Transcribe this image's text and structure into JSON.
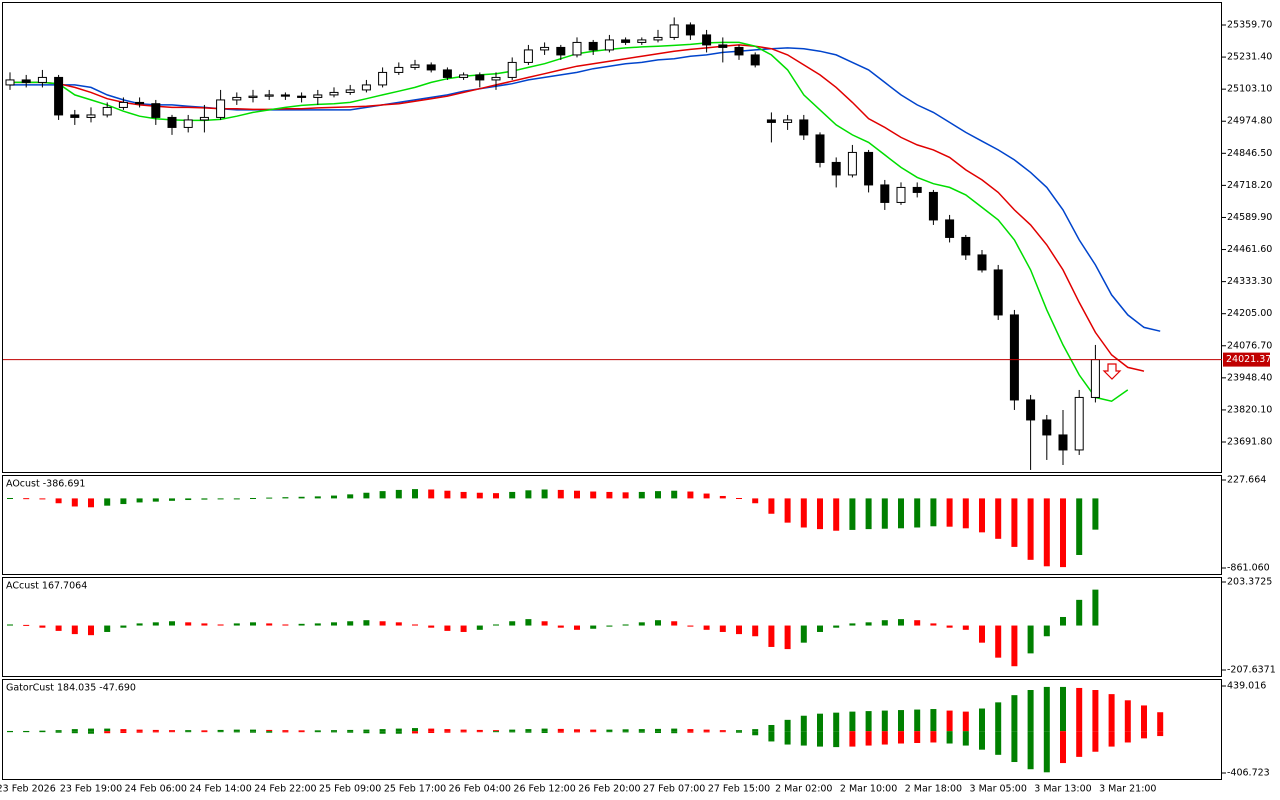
{
  "chart_data": [
    {
      "type": "candlestick",
      "categories": [
        null,
        "23 Feb 2026",
        null,
        null,
        null,
        "23 Feb 19:00",
        null,
        null,
        null,
        "24 Feb 06:00",
        null,
        null,
        null,
        "24 Feb 14:00",
        null,
        null,
        null,
        "24 Feb 22:00",
        null,
        null,
        null,
        "25 Feb 09:00",
        null,
        null,
        null,
        "25 Feb 17:00",
        null,
        null,
        null,
        "26 Feb 04:00",
        null,
        null,
        null,
        "26 Feb 12:00",
        null,
        null,
        null,
        "26 Feb 20:00",
        null,
        null,
        null,
        "27 Feb 07:00",
        null,
        null,
        null,
        "27 Feb 15:00",
        null,
        null,
        null,
        "2 Mar 02:00",
        null,
        null,
        null,
        "2 Mar 10:00",
        null,
        null,
        null,
        "2 Mar 18:00",
        null,
        null,
        null,
        "3 Mar 05:00",
        null,
        null,
        null,
        "3 Mar 13:00",
        null,
        null,
        null,
        "3 Mar 21:00",
        null,
        null
      ],
      "open": [
        25120,
        25140,
        25130,
        25150,
        25000,
        24990,
        25000,
        25030,
        25050,
        25045,
        24990,
        24950,
        24980,
        24990,
        25060,
        25070,
        25075,
        25080,
        25075,
        25070,
        25080,
        25090,
        25100,
        25120,
        25170,
        25190,
        25200,
        25180,
        25150,
        25160,
        25140,
        25150,
        25210,
        25260,
        25270,
        25240,
        25290,
        25260,
        25300,
        25290,
        25300,
        25310,
        25360,
        25320,
        25280,
        25270,
        25240,
        24980,
        24970,
        24980,
        24920,
        24810,
        24760,
        24850,
        24720,
        24650,
        24710,
        24690,
        24580,
        24510,
        24440,
        24380,
        24200,
        23860,
        23780,
        23720,
        23660,
        23870,
        null,
        null,
        null,
        null
      ],
      "high": [
        25170,
        25160,
        25180,
        25160,
        25020,
        25030,
        25050,
        25070,
        25070,
        25060,
        25000,
        25000,
        25040,
        25100,
        25090,
        25100,
        25100,
        25090,
        25090,
        25100,
        25110,
        25120,
        25140,
        25190,
        25210,
        25220,
        25210,
        25190,
        25170,
        25170,
        25170,
        25230,
        25280,
        25290,
        25280,
        25310,
        25300,
        25320,
        25310,
        25310,
        25340,
        25390,
        25370,
        25340,
        25310,
        25280,
        25250,
        25010,
        25000,
        25000,
        24930,
        24830,
        24880,
        24860,
        24740,
        24730,
        24730,
        24700,
        24600,
        24520,
        24460,
        24400,
        24220,
        23880,
        23800,
        23820,
        23900,
        24080,
        null,
        null,
        null,
        null
      ],
      "low": [
        25100,
        25110,
        25110,
        24980,
        24960,
        24970,
        24990,
        25020,
        25030,
        24960,
        24920,
        24930,
        24930,
        24980,
        25040,
        25050,
        25060,
        25060,
        25050,
        25040,
        25070,
        25080,
        25090,
        25110,
        25160,
        25180,
        25170,
        25140,
        25140,
        25110,
        25100,
        25140,
        25200,
        25240,
        25220,
        25230,
        25240,
        25250,
        25280,
        25280,
        25290,
        25300,
        25300,
        25250,
        25210,
        25220,
        25190,
        24890,
        24940,
        24900,
        24790,
        24710,
        24750,
        24690,
        24620,
        24640,
        24670,
        24560,
        24490,
        24420,
        24370,
        24180,
        23820,
        23580,
        23620,
        23600,
        23640,
        23850,
        null,
        null,
        null,
        null
      ],
      "close": [
        25140,
        25130,
        25150,
        25000,
        24990,
        25000,
        25030,
        25050,
        25045,
        24990,
        24950,
        24980,
        24990,
        25060,
        25070,
        25075,
        25080,
        25075,
        25070,
        25080,
        25090,
        25100,
        25120,
        25170,
        25190,
        25200,
        25180,
        25150,
        25160,
        25140,
        25150,
        25210,
        25260,
        25270,
        25240,
        25290,
        25260,
        25300,
        25290,
        25300,
        25310,
        25360,
        25320,
        25280,
        25270,
        25240,
        25200,
        24970,
        24980,
        24920,
        24810,
        24760,
        24850,
        24720,
        24650,
        24710,
        24690,
        24580,
        24510,
        24440,
        24380,
        24200,
        23860,
        23780,
        23720,
        23660,
        23870,
        24021.37,
        null,
        null,
        null,
        null
      ],
      "up_color": "#ffffff",
      "down_color": "#000000",
      "lines": [
        {
          "color": "#0044cc",
          "values": [
            25120,
            25120,
            25120,
            25120,
            25120,
            25110,
            25080,
            25060,
            25045,
            25040,
            25040,
            25035,
            25030,
            25025,
            25020,
            25020,
            25020,
            25020,
            25020,
            25020,
            25020,
            25020,
            25030,
            25040,
            25050,
            25060,
            25070,
            25080,
            25095,
            25105,
            25115,
            25125,
            25140,
            25150,
            25160,
            25170,
            25185,
            25195,
            25205,
            25210,
            25220,
            25225,
            25235,
            25240,
            25250,
            25255,
            25260,
            25265,
            25268,
            25265,
            25255,
            25240,
            25210,
            25180,
            25130,
            25080,
            25040,
            25010,
            24970,
            24930,
            24895,
            24860,
            24820,
            24770,
            24710,
            24620,
            24500,
            24400,
            24280,
            24200,
            24150,
            24135
          ]
        },
        {
          "color": "#e00000",
          "values": [
            25130,
            25130,
            25130,
            25125,
            25110,
            25090,
            25065,
            25050,
            25040,
            25035,
            25030,
            25030,
            25028,
            25025,
            25025,
            25022,
            25022,
            25025,
            25025,
            25028,
            25030,
            25032,
            25035,
            25040,
            25045,
            25055,
            25065,
            25075,
            25090,
            25105,
            25120,
            25135,
            25150,
            25165,
            25180,
            25195,
            25205,
            25215,
            25225,
            25235,
            25245,
            25255,
            25262,
            25268,
            25275,
            25280,
            25275,
            25265,
            25240,
            25200,
            25160,
            25110,
            25050,
            24985,
            24950,
            24910,
            24880,
            24860,
            24830,
            24780,
            24740,
            24690,
            24620,
            24560,
            24480,
            24380,
            24250,
            24130,
            24040,
            23990,
            23975,
            null
          ]
        },
        {
          "color": "#00dd00",
          "values": [
            25130,
            25130,
            25130,
            25125,
            25080,
            25060,
            25040,
            25015,
            24995,
            24985,
            24980,
            24978,
            24978,
            24982,
            24995,
            25010,
            25020,
            25030,
            25038,
            25042,
            25045,
            25050,
            25065,
            25080,
            25095,
            25110,
            25130,
            25145,
            25155,
            25160,
            25165,
            25175,
            25190,
            25205,
            25225,
            25245,
            25255,
            25262,
            25268,
            25272,
            25275,
            25278,
            25282,
            25288,
            25290,
            25290,
            25275,
            25240,
            25180,
            25080,
            25020,
            24960,
            24920,
            24890,
            24840,
            24790,
            24750,
            24725,
            24710,
            24680,
            24630,
            24580,
            24500,
            24380,
            24220,
            24080,
            23960,
            23870,
            23855,
            23900,
            null,
            null
          ]
        }
      ],
      "last_price": 24021.37,
      "last_price_color": "#c00000",
      "ylim": [
        23571.8,
        25447.7
      ],
      "yticks": [
        {
          "value": 25359.7,
          "label": "25359.70"
        },
        {
          "value": 25231.4,
          "label": "25231.40"
        },
        {
          "value": 25103.1,
          "label": "25103.10"
        },
        {
          "value": 24974.8,
          "label": "24974.80"
        },
        {
          "value": 24846.5,
          "label": "24846.50"
        },
        {
          "value": 24718.2,
          "label": "24718.20"
        },
        {
          "value": 24589.9,
          "label": "24589.90"
        },
        {
          "value": 24461.6,
          "label": "24461.60"
        },
        {
          "value": 24333.3,
          "label": "24333.30"
        },
        {
          "value": 24205.0,
          "label": "24205.00"
        },
        {
          "value": 24076.7,
          "label": "24076.70"
        },
        {
          "value": 23948.4,
          "label": "23948.40"
        },
        {
          "value": 23820.1,
          "label": "23820.10"
        },
        {
          "value": 23691.8,
          "label": "23691.80"
        }
      ]
    },
    {
      "type": "bar",
      "title": "AOcust -386.691",
      "up_color": "#008000",
      "down_color": "#ff0000",
      "values": [
        5,
        3,
        -10,
        -60,
        -100,
        -110,
        -90,
        -70,
        -50,
        -40,
        -30,
        -20,
        -15,
        -10,
        -5,
        5,
        10,
        15,
        20,
        25,
        35,
        50,
        70,
        90,
        105,
        115,
        110,
        95,
        80,
        70,
        65,
        80,
        100,
        110,
        105,
        95,
        85,
        80,
        75,
        80,
        90,
        95,
        85,
        60,
        30,
        5,
        -60,
        -190,
        -300,
        -360,
        -380,
        -400,
        -390,
        -380,
        -375,
        -370,
        -360,
        -345,
        -350,
        -370,
        -420,
        -500,
        -600,
        -760,
        -840,
        -850,
        -700,
        -386.691,
        null,
        null,
        null,
        null
      ],
      "ylim": [
        -935.3,
        277.1
      ],
      "yticks": [
        227.664,
        {
          "value": -861.06,
          "label": "-861.060"
        }
      ]
    },
    {
      "type": "bar",
      "title": "ACcust 167.7064",
      "up_color": "#008000",
      "down_color": "#ff0000",
      "values": [
        5,
        3,
        -10,
        -25,
        -40,
        -45,
        -30,
        -10,
        10,
        15,
        20,
        15,
        10,
        5,
        10,
        15,
        10,
        5,
        8,
        10,
        15,
        20,
        25,
        20,
        15,
        5,
        -10,
        -25,
        -30,
        -20,
        5,
        20,
        30,
        20,
        -10,
        -20,
        -15,
        -5,
        5,
        15,
        25,
        20,
        -5,
        -20,
        -30,
        -40,
        -50,
        -100,
        -110,
        -80,
        -30,
        -10,
        10,
        15,
        25,
        30,
        25,
        10,
        -10,
        -20,
        -80,
        -150,
        -190,
        -130,
        -50,
        40,
        120,
        167.7064,
        null,
        null,
        null,
        null
      ],
      "ylim": [
        -235.66,
        222.05
      ],
      "yticks": [
        203.3725,
        -207.6371
      ]
    },
    {
      "type": "gator",
      "title": "GatorCust 184.035 -47.690",
      "up_color": "#008000",
      "down_color": "#ff0000",
      "upper": [
        2,
        2,
        5,
        10,
        20,
        25,
        25,
        20,
        15,
        12,
        10,
        10,
        8,
        12,
        15,
        15,
        12,
        10,
        8,
        8,
        10,
        12,
        15,
        20,
        25,
        30,
        25,
        20,
        15,
        12,
        10,
        15,
        20,
        25,
        22,
        18,
        15,
        15,
        18,
        20,
        22,
        25,
        20,
        15,
        10,
        10,
        20,
        60,
        110,
        150,
        170,
        180,
        190,
        195,
        200,
        205,
        210,
        215,
        200,
        190,
        220,
        280,
        350,
        400,
        430,
        430,
        420,
        400,
        360,
        300,
        250,
        184.035
      ],
      "lower": [
        -2,
        -3,
        -8,
        -15,
        -20,
        -25,
        -20,
        -18,
        -15,
        -12,
        -10,
        -10,
        -8,
        -10,
        -12,
        -15,
        -15,
        -12,
        -10,
        -10,
        -12,
        -15,
        -20,
        -25,
        -25,
        -22,
        -18,
        -15,
        -12,
        -10,
        -10,
        -12,
        -15,
        -18,
        -15,
        -12,
        -10,
        -10,
        -12,
        -15,
        -18,
        -20,
        -15,
        -12,
        -10,
        -15,
        -40,
        -100,
        -130,
        -140,
        -150,
        -155,
        -150,
        -140,
        -130,
        -120,
        -115,
        -110,
        -120,
        -140,
        -180,
        -230,
        -300,
        -370,
        -400,
        -310,
        -250,
        -200,
        -150,
        -110,
        -70,
        -47.69
      ],
      "ylim": [
        -455.3,
        497.3
      ],
      "yticks": [
        439.016,
        -406.723
      ]
    }
  ]
}
